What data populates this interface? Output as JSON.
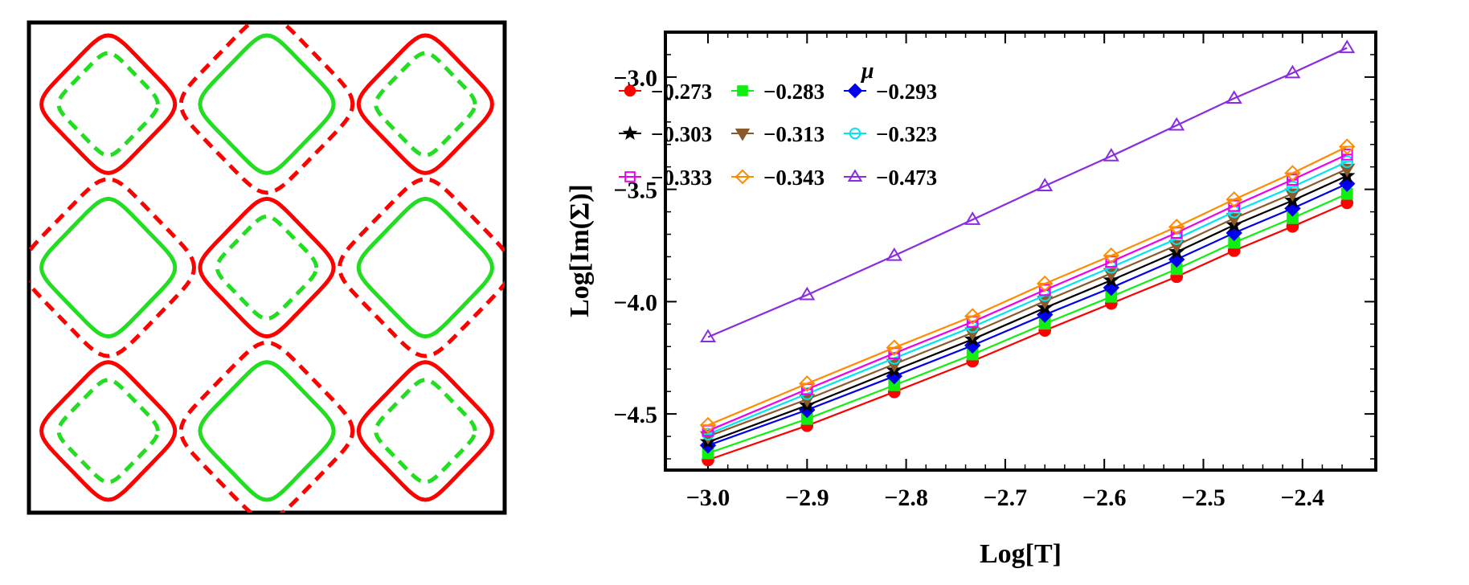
{
  "chart_data": [
    {
      "type": "line",
      "title": "",
      "xlabel": "",
      "ylabel": "",
      "xlim": [
        -3.1416,
        3.1416
      ],
      "ylim": [
        -3.1416,
        3.1416
      ],
      "axes_ticks": false,
      "series": [
        {
          "style": "solid",
          "color": "#ff0000"
        },
        {
          "style": "dashed",
          "color": "#ff0000"
        },
        {
          "style": "solid",
          "color": "#22dd22"
        },
        {
          "style": "dashed",
          "color": "#22dd22"
        }
      ]
    },
    {
      "type": "line",
      "title": "",
      "xlabel": "Log[T]",
      "ylabel": "Log[Im(Σ)]",
      "xlim": [
        -3.0,
        -2.35
      ],
      "ylim": [
        -4.75,
        -2.8
      ],
      "xticks": [
        -3.0,
        -2.9,
        -2.8,
        -2.7,
        -2.6,
        -2.5,
        -2.4
      ],
      "xtick_labels": [
        "−3.0",
        "−2.9",
        "−2.8",
        "−2.7",
        "−2.6",
        "−2.5",
        "−2.4"
      ],
      "yticks": [
        -3.0,
        -3.5,
        -4.0,
        -4.5
      ],
      "ytick_labels": [
        "−3.0",
        "−3.5",
        "−4.0",
        "−4.5"
      ],
      "grid": false,
      "legend_title": "μ",
      "legend_position": "top-left",
      "x": [
        -3.0,
        -2.9,
        -2.812,
        -2.733,
        -2.66,
        -2.593,
        -2.527,
        -2.469,
        -2.41,
        -2.355
      ],
      "series": [
        {
          "name": "−0.273",
          "color": "#ff0000",
          "marker": "circle-filled",
          "values": [
            -4.705,
            -4.552,
            -4.402,
            -4.265,
            -4.128,
            -4.008,
            -3.889,
            -3.773,
            -3.665,
            -3.56
          ]
        },
        {
          "name": "−0.283",
          "color": "#11ee11",
          "marker": "square-filled",
          "values": [
            -4.675,
            -4.522,
            -4.372,
            -4.235,
            -4.098,
            -3.978,
            -3.855,
            -3.737,
            -3.628,
            -3.52
          ]
        },
        {
          "name": "−0.293",
          "color": "#0000ee",
          "marker": "diamond-filled",
          "values": [
            -4.64,
            -4.482,
            -4.332,
            -4.195,
            -4.058,
            -3.938,
            -3.812,
            -3.694,
            -3.585,
            -3.475
          ]
        },
        {
          "name": "−0.303",
          "color": "#000000",
          "marker": "star-filled",
          "values": [
            -4.625,
            -4.462,
            -4.306,
            -4.168,
            -4.028,
            -3.905,
            -3.779,
            -3.659,
            -3.55,
            -3.44
          ]
        },
        {
          "name": "−0.313",
          "color": "#8b5a2b",
          "marker": "triangle-down-filled",
          "values": [
            -4.6,
            -4.435,
            -4.278,
            -4.138,
            -3.998,
            -3.874,
            -3.749,
            -3.629,
            -3.519,
            -3.409
          ]
        },
        {
          "name": "−0.323",
          "color": "#00e5ee",
          "marker": "circle-open-bar",
          "values": [
            -4.59,
            -4.41,
            -4.252,
            -4.112,
            -3.972,
            -3.847,
            -3.72,
            -3.6,
            -3.489,
            -3.377
          ]
        },
        {
          "name": "−0.333",
          "color": "#ee00ee",
          "marker": "square-open-bar",
          "values": [
            -4.575,
            -4.39,
            -4.23,
            -4.09,
            -3.948,
            -3.822,
            -3.693,
            -3.573,
            -3.457,
            -3.345
          ]
        },
        {
          "name": "−0.343",
          "color": "#ff8c00",
          "marker": "diamond-open-bar",
          "values": [
            -4.55,
            -4.365,
            -4.205,
            -4.065,
            -3.92,
            -3.795,
            -3.667,
            -3.545,
            -3.428,
            -3.31
          ]
        },
        {
          "name": "−0.473",
          "color": "#8a2be2",
          "marker": "triangle-up-open",
          "values": [
            -4.158,
            -3.97,
            -3.795,
            -3.635,
            -3.485,
            -3.352,
            -3.215,
            -3.095,
            -2.982,
            -2.87
          ]
        }
      ]
    }
  ]
}
